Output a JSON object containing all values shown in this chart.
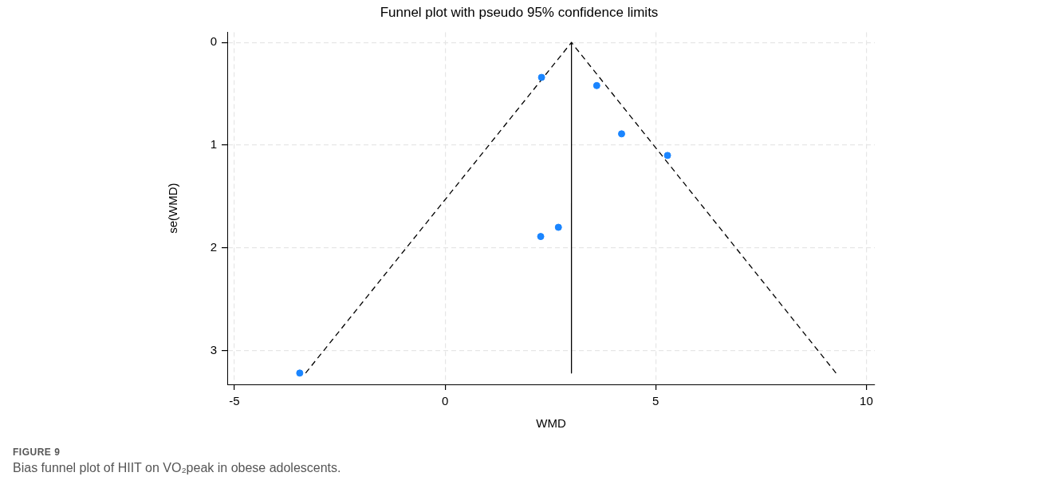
{
  "chart_data": {
    "type": "scatter",
    "title": "Funnel plot with pseudo 95% confidence limits",
    "xlabel": "WMD",
    "ylabel": "se(WMD)",
    "xlim": [
      -5.17,
      10.2
    ],
    "xticks": [
      -5,
      0,
      5,
      10
    ],
    "ylim": [
      3.33,
      -0.1
    ],
    "yticks": [
      0,
      1,
      2,
      3
    ],
    "grid": true,
    "legend": false,
    "series": [
      {
        "type": "scatter",
        "color": "#1a85ff",
        "marker": "circle",
        "x": [
          2.29,
          3.6,
          4.19,
          5.28,
          2.69,
          2.27,
          -3.45
        ],
        "values": [
          0.34,
          0.42,
          0.89,
          1.1,
          1.8,
          1.89,
          3.22
        ]
      },
      {
        "type": "line",
        "color": "#000000",
        "marker": "none",
        "line_style": "solid",
        "x": [
          3,
          3
        ],
        "values": [
          0,
          3.22
        ]
      },
      {
        "type": "line",
        "color": "#000000",
        "marker": "none",
        "line_style": "dashed",
        "x": [
          -3.31,
          3,
          9.28
        ],
        "values": [
          3.22,
          0,
          3.22
        ]
      }
    ],
    "annotations": [
      "FIGURE 9",
      "Bias funnel plot of HIIT on VO₂peak in obese adolescents."
    ]
  }
}
